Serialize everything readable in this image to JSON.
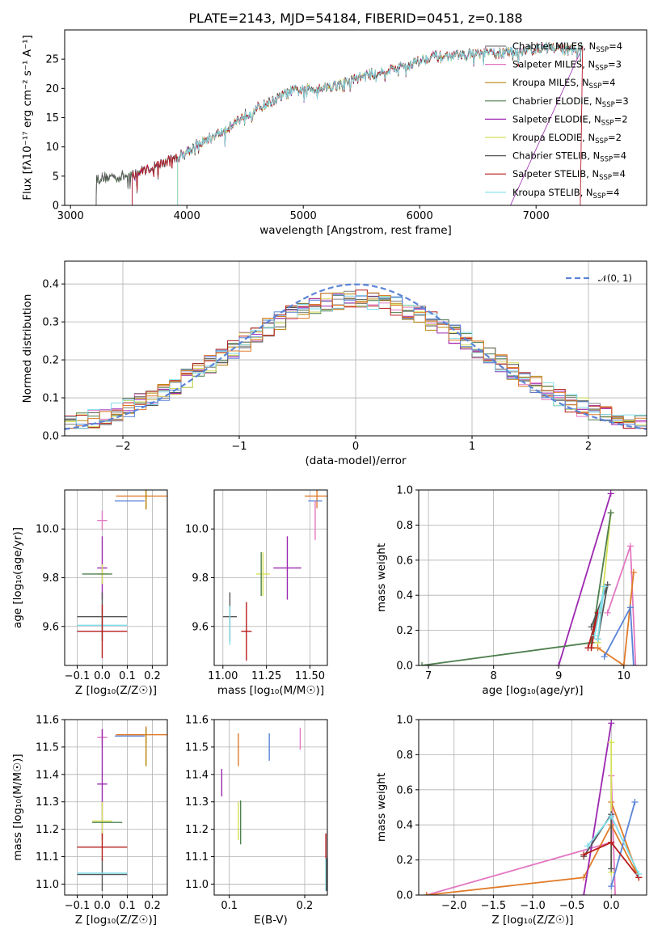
{
  "figure": {
    "title": "PLATE=2143, MJD=54184, FIBERID=0451, z=0.188"
  },
  "colors": {
    "Chabrier MILES": "#808080",
    "Salpeter MILES": "#e377c2",
    "Kroupa MILES": "#b8860b",
    "Chabrier ELODIE": "#4f7f4f",
    "Salpeter ELODIE": "#9c27b0",
    "Kroupa ELODIE": "#d4e157",
    "Chabrier STELIB": "#555555",
    "Salpeter STELIB": "#b71c1c",
    "Kroupa STELIB": "#80deea",
    "extra_blue": "#5b84d6",
    "extra_orange": "#e07b2a",
    "gauss": "#5b84d6"
  },
  "chart_data": [
    {
      "id": "spectrum",
      "type": "line",
      "title": "PLATE=2143, MJD=54184, FIBERID=0451, z=0.188",
      "xlabel": "wavelength [Angstrom, rest frame]",
      "ylabel": "Flux [fλ10⁻¹⁷ erg cm⁻² s⁻¹ A⁻¹]",
      "xlim": [
        2950,
        7950
      ],
      "ylim": [
        0,
        30
      ],
      "xticks": [
        3000,
        4000,
        5000,
        6000,
        7000
      ],
      "yticks": [
        0,
        5,
        10,
        15,
        20,
        25
      ],
      "grid": false,
      "legend_position": "top-right",
      "legend": [
        {
          "name": "Chabrier MILES",
          "ssp": "4"
        },
        {
          "name": "Salpeter MILES",
          "ssp": "3"
        },
        {
          "name": "Kroupa MILES",
          "ssp": "4"
        },
        {
          "name": "Chabrier ELODIE",
          "ssp": "3"
        },
        {
          "name": "Salpeter ELODIE",
          "ssp": "2"
        },
        {
          "name": "Kroupa ELODIE",
          "ssp": "2"
        },
        {
          "name": "Chabrier STELIB",
          "ssp": "4"
        },
        {
          "name": "Salpeter STELIB",
          "ssp": "4"
        },
        {
          "name": "Kroupa STELIB",
          "ssp": "4"
        }
      ],
      "continuum": {
        "x": [
          3200,
          3300,
          3500,
          3700,
          3900,
          4100,
          4300,
          4500,
          4700,
          4900,
          5100,
          5300,
          5500,
          5700,
          5900,
          6100,
          6300,
          6500,
          6700,
          6900,
          7100,
          7300,
          7400
        ],
        "y": [
          4.5,
          4.8,
          5.0,
          6.5,
          8.0,
          10.5,
          12.5,
          15.5,
          17.5,
          19.5,
          20.0,
          20.5,
          22.0,
          23.0,
          24.0,
          25.5,
          25.5,
          26.0,
          26.0,
          26.5,
          27.0,
          26.5,
          27.0
        ]
      },
      "model_start_x": [
        3220,
        3530,
        3920
      ],
      "model_end_x": [
        6780,
        7380
      ]
    },
    {
      "id": "residuals",
      "type": "line",
      "xlabel": "(data-model)/error",
      "ylabel": "Normed distribution",
      "xlim": [
        -2.5,
        2.5
      ],
      "ylim": [
        0,
        0.46
      ],
      "xticks": [
        -2,
        -1,
        0,
        1,
        2
      ],
      "yticks": [
        0.0,
        0.1,
        0.2,
        0.3,
        0.4
      ],
      "grid": true,
      "legend_position": "top-right",
      "gauss_label": "𝒩(0, 1)",
      "bin_width": 0.1,
      "approx_histogram_shape": "gaussian-like, sigma≈1.1, peak≈0.36"
    },
    {
      "id": "age_vs_Z",
      "type": "scatter",
      "xlabel": "Z [log₁₀(Z/Z☉)]",
      "ylabel": "age  [log₁₀(age/yr)]",
      "xlim": [
        -0.15,
        0.26
      ],
      "ylim": [
        9.44,
        10.16
      ],
      "xticks": [
        -0.1,
        0.0,
        0.1,
        0.2
      ],
      "yticks": [
        9.6,
        9.8,
        10.0
      ],
      "grid": true,
      "points": [
        {
          "x": 0.175,
          "y": 10.135,
          "xe": 0.12,
          "ye": 0.05,
          "c": "extra_orange"
        },
        {
          "x": 0.11,
          "y": 10.115,
          "xe": 0.06,
          "ye": 0.0,
          "c": "extra_blue"
        },
        {
          "x": 0.175,
          "y": 10.12,
          "xe": 0.0,
          "ye": 0.04,
          "c": "Kroupa MILES"
        },
        {
          "x": 0.0,
          "y": 10.035,
          "xe": 0.02,
          "ye": 0.04,
          "c": "Salpeter MILES"
        },
        {
          "x": 0.0,
          "y": 9.84,
          "xe": 0.02,
          "ye": 0.13,
          "c": "Salpeter ELODIE"
        },
        {
          "x": 0.0,
          "y": 9.815,
          "xe": 0.02,
          "ye": 0.04,
          "c": "Kroupa ELODIE"
        },
        {
          "x": -0.02,
          "y": 9.815,
          "xe": 0.06,
          "ye": 0.0,
          "c": "Chabrier ELODIE"
        },
        {
          "x": 0.0,
          "y": 9.64,
          "xe": 0.1,
          "ye": 0.1,
          "c": "Chabrier STELIB"
        },
        {
          "x": 0.0,
          "y": 9.605,
          "xe": 0.1,
          "ye": 0.05,
          "c": "Kroupa STELIB"
        },
        {
          "x": 0.0,
          "y": 9.58,
          "xe": 0.1,
          "ye": 0.11,
          "c": "Salpeter STELIB"
        }
      ]
    },
    {
      "id": "age_vs_mass",
      "type": "scatter",
      "xlabel": "mass [log₁₀(M/M☉)]",
      "ylabel": "",
      "xlim": [
        10.95,
        11.6
      ],
      "ylim": [
        9.44,
        10.16
      ],
      "xticks": [
        11.0,
        11.25,
        11.5
      ],
      "yticks": [
        9.6,
        9.8,
        10.0
      ],
      "grid": true,
      "points": [
        {
          "x": 11.54,
          "y": 10.135,
          "xe": 0.07,
          "ye": 0.05,
          "c": "extra_orange"
        },
        {
          "x": 11.53,
          "y": 10.115,
          "xe": 0.04,
          "ye": 0.0,
          "c": "extra_blue"
        },
        {
          "x": 11.53,
          "y": 10.035,
          "xe": 0.0,
          "ye": 0.08,
          "c": "Salpeter MILES"
        },
        {
          "x": 11.37,
          "y": 9.84,
          "xe": 0.08,
          "ye": 0.13,
          "c": "Salpeter ELODIE"
        },
        {
          "x": 11.23,
          "y": 9.815,
          "xe": 0.04,
          "ye": 0.09,
          "c": "Kroupa ELODIE"
        },
        {
          "x": 11.22,
          "y": 9.815,
          "xe": 0.0,
          "ye": 0.09,
          "c": "Chabrier ELODIE"
        },
        {
          "x": 11.04,
          "y": 9.64,
          "xe": 0.04,
          "ye": 0.1,
          "c": "Chabrier STELIB"
        },
        {
          "x": 11.04,
          "y": 9.605,
          "xe": 0.0,
          "ye": 0.08,
          "c": "Kroupa STELIB"
        },
        {
          "x": 11.135,
          "y": 9.58,
          "xe": 0.03,
          "ye": 0.12,
          "c": "Salpeter STELIB"
        }
      ]
    },
    {
      "id": "weight_vs_age",
      "type": "line",
      "xlabel": "age  [log₁₀(age/yr)]",
      "ylabel": "mass weight",
      "xlim": [
        6.85,
        10.35
      ],
      "ylim": [
        0,
        1.0
      ],
      "xticks": [
        7,
        8,
        9,
        10
      ],
      "yticks": [
        0.0,
        0.2,
        0.4,
        0.6,
        0.8,
        1.0
      ],
      "grid": true,
      "series": [
        {
          "c": "Salpeter ELODIE",
          "x": [
            9.0,
            9.8
          ],
          "y": [
            0.0,
            0.98
          ]
        },
        {
          "c": "Kroupa ELODIE",
          "x": [
            9.6,
            9.8
          ],
          "y": [
            0.13,
            0.87
          ]
        },
        {
          "c": "Chabrier ELODIE",
          "x": [
            6.9,
            9.5,
            9.8
          ],
          "y": [
            0.0,
            0.13,
            0.87
          ]
        },
        {
          "c": "Salpeter MILES",
          "x": [
            9.75,
            10.1,
            10.18
          ],
          "y": [
            0.3,
            0.68,
            0.0
          ]
        },
        {
          "c": "extra_orange",
          "x": [
            9.5,
            9.6,
            10.0,
            10.15
          ],
          "y": [
            0.1,
            0.1,
            0.0,
            0.53
          ]
        },
        {
          "c": "extra_blue",
          "x": [
            9.7,
            10.1,
            10.15
          ],
          "y": [
            0.05,
            0.33,
            0.0
          ]
        },
        {
          "c": "Chabrier STELIB",
          "x": [
            9.5,
            9.75,
            9.6
          ],
          "y": [
            0.22,
            0.46,
            0.15
          ]
        },
        {
          "c": "Salpeter STELIB",
          "x": [
            9.45,
            9.6,
            9.5
          ],
          "y": [
            0.1,
            0.3,
            0.1
          ]
        },
        {
          "c": "Kroupa STELIB",
          "x": [
            9.55,
            9.7,
            9.6
          ],
          "y": [
            0.17,
            0.45,
            0.15
          ]
        }
      ]
    },
    {
      "id": "mass_vs_Z",
      "type": "scatter",
      "xlabel": "Z [log₁₀(Z/Z☉)]",
      "ylabel": "mass [log₁₀(M/M☉)]",
      "xlim": [
        -0.15,
        0.26
      ],
      "ylim": [
        10.96,
        11.6
      ],
      "xticks": [
        -0.1,
        0.0,
        0.1,
        0.2
      ],
      "yticks": [
        11.0,
        11.1,
        11.2,
        11.3,
        11.4,
        11.5,
        11.6
      ],
      "grid": true,
      "points": [
        {
          "x": 0.175,
          "y": 11.545,
          "xe": 0.12,
          "ye": 0.03,
          "c": "extra_orange"
        },
        {
          "x": 0.11,
          "y": 11.54,
          "xe": 0.06,
          "ye": 0.0,
          "c": "extra_blue"
        },
        {
          "x": 0.175,
          "y": 11.5,
          "xe": 0.0,
          "ye": 0.07,
          "c": "Kroupa MILES"
        },
        {
          "x": 0.0,
          "y": 11.535,
          "xe": 0.02,
          "ye": 0.03,
          "c": "Salpeter MILES"
        },
        {
          "x": 0.0,
          "y": 11.365,
          "xe": 0.02,
          "ye": 0.2,
          "c": "Salpeter ELODIE"
        },
        {
          "x": 0.0,
          "y": 11.23,
          "xe": 0.04,
          "ye": 0.07,
          "c": "Kroupa ELODIE"
        },
        {
          "x": 0.02,
          "y": 11.225,
          "xe": 0.06,
          "ye": 0.0,
          "c": "Chabrier ELODIE"
        },
        {
          "x": 0.0,
          "y": 11.035,
          "xe": 0.1,
          "ye": 0.06,
          "c": "Chabrier STELIB"
        },
        {
          "x": 0.0,
          "y": 11.04,
          "xe": 0.1,
          "ye": 0.0,
          "c": "Kroupa STELIB"
        },
        {
          "x": 0.0,
          "y": 11.135,
          "xe": 0.1,
          "ye": 0.05,
          "c": "Salpeter STELIB"
        }
      ]
    },
    {
      "id": "mass_vs_EBV",
      "type": "scatter",
      "xlabel": "E(B-V)",
      "ylabel": "",
      "xlim": [
        0.08,
        0.23
      ],
      "ylim": [
        10.96,
        11.6
      ],
      "xticks": [
        0.1,
        0.2
      ],
      "yticks": [
        11.0,
        11.1,
        11.2,
        11.3,
        11.4,
        11.5,
        11.6
      ],
      "grid": true,
      "points": [
        {
          "x": 0.09,
          "y": 11.37,
          "xe": 0.0,
          "ye": 0.05,
          "c": "Salpeter ELODIE"
        },
        {
          "x": 0.112,
          "y": 11.49,
          "xe": 0.0,
          "ye": 0.06,
          "c": "extra_orange"
        },
        {
          "x": 0.112,
          "y": 11.23,
          "xe": 0.0,
          "ye": 0.07,
          "c": "Kroupa ELODIE"
        },
        {
          "x": 0.115,
          "y": 11.225,
          "xe": 0.0,
          "ye": 0.08,
          "c": "Chabrier ELODIE"
        },
        {
          "x": 0.153,
          "y": 11.5,
          "xe": 0.0,
          "ye": 0.05,
          "c": "extra_blue"
        },
        {
          "x": 0.194,
          "y": 11.53,
          "xe": 0.0,
          "ye": 0.04,
          "c": "Salpeter MILES"
        },
        {
          "x": 0.228,
          "y": 11.135,
          "xe": 0.0,
          "ye": 0.05,
          "c": "Salpeter STELIB"
        },
        {
          "x": 0.228,
          "y": 11.035,
          "xe": 0.0,
          "ye": 0.06,
          "c": "Kroupa STELIB"
        },
        {
          "x": 0.229,
          "y": 11.035,
          "xe": 0.0,
          "ye": 0.06,
          "c": "Chabrier STELIB"
        }
      ]
    },
    {
      "id": "weight_vs_Z",
      "type": "line",
      "xlabel": "Z [log₁₀(Z/Z☉)]",
      "ylabel": "mass weight",
      "xlim": [
        -2.45,
        0.45
      ],
      "ylim": [
        0,
        1.0
      ],
      "xticks": [
        -2.0,
        -1.5,
        -1.0,
        -0.5,
        0.0
      ],
      "yticks": [
        0.0,
        0.2,
        0.4,
        0.6,
        0.8,
        1.0
      ],
      "grid": true,
      "series": [
        {
          "c": "Salpeter MILES",
          "x": [
            -2.35,
            0.0,
            0.0,
            0.05
          ],
          "y": [
            0.0,
            0.3,
            0.68,
            0.0
          ]
        },
        {
          "c": "extra_orange",
          "x": [
            -2.35,
            -0.35,
            0.0,
            0.35,
            0.0
          ],
          "y": [
            0.0,
            0.1,
            0.4,
            0.1,
            0.53
          ]
        },
        {
          "c": "Salpeter ELODIE",
          "x": [
            -0.35,
            0.0
          ],
          "y": [
            0.0,
            0.98
          ]
        },
        {
          "c": "Kroupa ELODIE",
          "x": [
            0.0,
            0.0
          ],
          "y": [
            0.13,
            0.87
          ]
        },
        {
          "c": "extra_blue",
          "x": [
            0.0,
            0.3
          ],
          "y": [
            0.05,
            0.53
          ]
        },
        {
          "c": "Chabrier STELIB",
          "x": [
            -0.35,
            0.0,
            0.0
          ],
          "y": [
            0.22,
            0.46,
            0.15
          ]
        },
        {
          "c": "Salpeter STELIB",
          "x": [
            -0.35,
            0.0,
            0.35
          ],
          "y": [
            0.23,
            0.3,
            0.1
          ]
        },
        {
          "c": "Kroupa STELIB",
          "x": [
            -0.3,
            0.0,
            0.35
          ],
          "y": [
            0.28,
            0.45,
            0.12
          ]
        }
      ]
    }
  ]
}
